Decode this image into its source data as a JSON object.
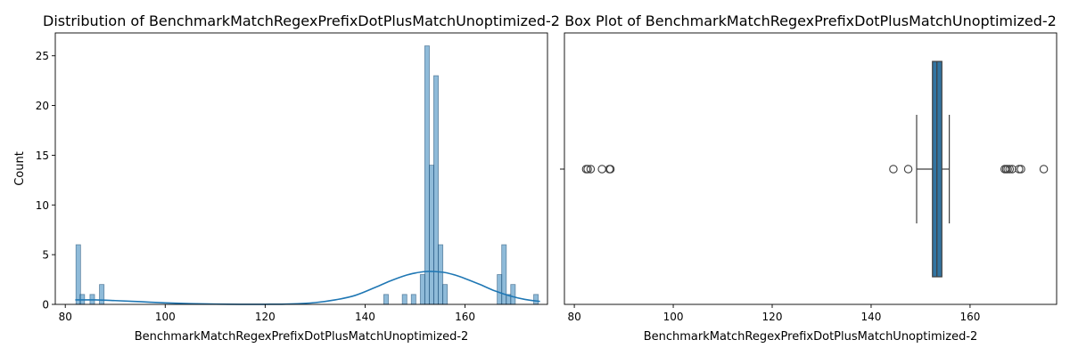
{
  "chart_data": [
    {
      "type": "histogram",
      "title": "Distribution of BenchmarkMatchRegexPrefixDotPlusMatchUnoptimized-2",
      "xlabel": "BenchmarkMatchRegexPrefixDotPlusMatchUnoptimized-2",
      "ylabel": "Count",
      "xlim": [
        78,
        176.5
      ],
      "ylim": [
        0,
        27.3
      ],
      "xticks": [
        80,
        100,
        120,
        140,
        160
      ],
      "yticks": [
        0,
        5,
        10,
        15,
        20,
        25
      ],
      "bin_width": 0.92,
      "bins": [
        {
          "x": 82.6,
          "count": 6
        },
        {
          "x": 83.4,
          "count": 1
        },
        {
          "x": 85.4,
          "count": 1
        },
        {
          "x": 87.3,
          "count": 2
        },
        {
          "x": 144.2,
          "count": 1
        },
        {
          "x": 147.9,
          "count": 1
        },
        {
          "x": 149.7,
          "count": 1
        },
        {
          "x": 151.5,
          "count": 3
        },
        {
          "x": 152.4,
          "count": 26
        },
        {
          "x": 153.3,
          "count": 14
        },
        {
          "x": 154.2,
          "count": 23
        },
        {
          "x": 155.1,
          "count": 6
        },
        {
          "x": 156.0,
          "count": 2
        },
        {
          "x": 166.9,
          "count": 3
        },
        {
          "x": 167.8,
          "count": 6
        },
        {
          "x": 168.7,
          "count": 1
        },
        {
          "x": 169.6,
          "count": 2
        },
        {
          "x": 174.2,
          "count": 1
        }
      ],
      "kde": {
        "x": [
          82,
          86,
          90,
          95,
          100,
          105,
          110,
          115,
          120,
          125,
          130,
          134,
          138,
          142,
          145,
          148,
          150,
          152,
          154,
          156,
          158,
          160,
          163,
          166,
          169,
          172,
          175
        ],
        "y": [
          0.45,
          0.45,
          0.38,
          0.27,
          0.15,
          0.07,
          0.03,
          0.01,
          0.01,
          0.04,
          0.18,
          0.45,
          0.9,
          1.7,
          2.35,
          2.9,
          3.15,
          3.3,
          3.3,
          3.2,
          2.95,
          2.6,
          2.0,
          1.35,
          0.85,
          0.5,
          0.3
        ]
      },
      "colors": {
        "bar": "#1f77b4",
        "kde": "#1f77b4"
      }
    },
    {
      "type": "box",
      "title": "Box Plot of BenchmarkMatchRegexPrefixDotPlusMatchUnoptimized-2",
      "xlabel": "BenchmarkMatchRegexPrefixDotPlusMatchUnoptimized-2",
      "xlim": [
        78,
        177.5
      ],
      "xticks": [
        80,
        100,
        120,
        140,
        160
      ],
      "box": {
        "q1": 152.4,
        "median": 153.3,
        "q3": 154.3,
        "whisker_low": 149.2,
        "whisker_high": 155.8
      },
      "outliers": [
        82.4,
        82.7,
        83.3,
        85.6,
        87.1,
        87.3,
        144.5,
        147.5,
        167.0,
        167.3,
        167.6,
        168.0,
        168.5,
        169.9,
        170.3,
        174.9
      ],
      "colors": {
        "box": "#3274a1"
      }
    }
  ]
}
